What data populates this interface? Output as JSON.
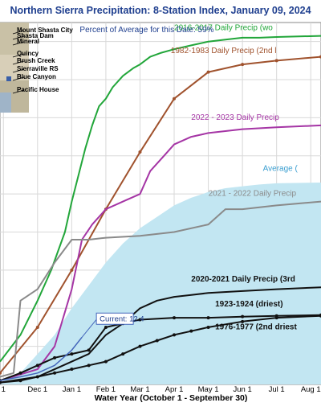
{
  "chart_data": {
    "type": "line",
    "title": "Northern Sierra Precipitation: 8-Station Index, January 09, 2024",
    "subtitle": "Percent of Average for this Date: 59%",
    "xlabel": "Water Year (October 1 - September 30)",
    "x_ticks": [
      "1",
      "Dec 1",
      "Jan 1",
      "Feb 1",
      "Mar 1",
      "Apr 1",
      "May 1",
      "Jun 1",
      "Jul 1",
      "Aug 1"
    ],
    "x_tick_months": [
      1,
      2,
      3,
      4,
      5,
      6,
      7,
      8,
      9,
      10
    ],
    "x_range_months": [
      0.9,
      10.3
    ],
    "y_range": [
      0,
      95
    ],
    "grid": true,
    "stations": [
      "Mount Shasta City",
      "Shasta Dam",
      "Mineral",
      "Quincy",
      "Brush Creek",
      "Sierraville RS",
      "Blue Canyon",
      "Pacific House"
    ],
    "current_label": "Current: 12.4",
    "current_point": [
      3.3,
      12.4
    ],
    "series": [
      {
        "name": "2016-2017 Daily Precip (wo",
        "color": "#22a63a",
        "x": [
          0.9,
          1.5,
          2.0,
          2.4,
          2.8,
          3.0,
          3.2,
          3.4,
          3.6,
          3.8,
          4.0,
          4.2,
          4.5,
          4.8,
          5.0,
          5.3,
          5.6,
          6.0,
          6.5,
          7.0,
          7.5,
          8.0,
          8.5,
          9.0,
          10.3
        ],
        "y": [
          6,
          13,
          22,
          30,
          40,
          48,
          55,
          62,
          68,
          73,
          75,
          78,
          81,
          83,
          84,
          86,
          87,
          88,
          89,
          90,
          90.5,
          91,
          91,
          91.2,
          91.5
        ]
      },
      {
        "name": "1982-1983 Daily Precip (2nd l",
        "color": "#a0522d",
        "x": [
          0.9,
          2.0,
          3.0,
          4.0,
          5.0,
          6.0,
          7.0,
          8.0,
          9.0,
          10.3
        ],
        "y": [
          3,
          15,
          30,
          46,
          61,
          75,
          82,
          84,
          85,
          86
        ]
      },
      {
        "name": "2022 - 2023 Daily Precip",
        "color": "#a535a5",
        "x": [
          0.9,
          2.0,
          2.5,
          3.0,
          3.3,
          3.6,
          4.0,
          4.5,
          5.0,
          5.3,
          5.7,
          6.0,
          6.5,
          7.0,
          8.0,
          9.0,
          10.3
        ],
        "y": [
          1,
          4,
          10,
          25,
          38,
          42,
          46,
          48,
          50,
          56,
          60,
          63,
          65,
          66,
          67,
          67.5,
          68
        ]
      },
      {
        "name": "Average",
        "color": "#c2e6f2",
        "x": [
          0.9,
          1.5,
          2.0,
          2.5,
          3.0,
          3.5,
          4.0,
          4.5,
          5.0,
          5.5,
          6.0,
          6.5,
          7.0,
          7.5,
          8.0,
          8.5,
          9.0,
          10.3
        ],
        "y": [
          0.5,
          3,
          8,
          13,
          20,
          26,
          32,
          37,
          41,
          44,
          47,
          49,
          50.5,
          51.5,
          52,
          52.5,
          52.8,
          53
        ]
      },
      {
        "name": "2021 - 2022 Daily Precip",
        "color": "#8a8a8a",
        "x": [
          0.9,
          1.3,
          1.5,
          2.0,
          2.5,
          3.0,
          3.5,
          4.0,
          5.0,
          6.0,
          7.0,
          7.5,
          8.0,
          9.0,
          10.3
        ],
        "y": [
          2,
          3,
          22,
          25,
          32,
          38,
          38,
          38.5,
          39,
          40,
          42,
          46,
          46,
          47,
          48
        ]
      },
      {
        "name": "2020-2021 Daily Precip (3rd",
        "color": "#111111",
        "x": [
          0.9,
          2.0,
          2.5,
          3.0,
          3.5,
          4.0,
          4.5,
          5.0,
          5.5,
          6.0,
          6.5,
          7.0,
          8.0,
          9.0,
          10.3
        ],
        "y": [
          0.5,
          2,
          4,
          6,
          8,
          13,
          16,
          20,
          22,
          23,
          23.5,
          24,
          24.5,
          25,
          25.5
        ]
      },
      {
        "name": "1923-1924 (driest)",
        "color": "#111111",
        "x": [
          0.9,
          1.5,
          2.0,
          2.5,
          3.0,
          3.5,
          4.0,
          4.5,
          5.0,
          6.0,
          7.0,
          8.0,
          9.0,
          10.3
        ],
        "y": [
          1,
          3,
          5,
          7,
          8,
          9,
          15,
          16,
          17,
          17.5,
          17.5,
          17.8,
          18,
          18.2
        ]
      },
      {
        "name": "1976-1977 (2nd driest",
        "color": "#111111",
        "x": [
          0.9,
          1.5,
          2.0,
          2.5,
          3.0,
          3.5,
          4.0,
          4.5,
          5.0,
          5.5,
          6.0,
          6.5,
          7.0,
          8.0,
          9.0,
          10.3
        ],
        "y": [
          0.5,
          1,
          2,
          3,
          4,
          5,
          6,
          8,
          10,
          11.5,
          13,
          14,
          15,
          16.5,
          17.5,
          18
        ]
      },
      {
        "name": "Current",
        "color": "#4466bb",
        "x": [
          0.9,
          1.5,
          2.0,
          2.5,
          3.0,
          3.3
        ],
        "y": [
          1,
          2,
          3,
          5,
          9,
          12.4
        ]
      }
    ],
    "labels": [
      {
        "series": 0,
        "text": "2016-2017 Daily Precip (wo",
        "x": 6.0,
        "y": 93
      },
      {
        "series": 1,
        "text": "1982-1983 Daily Precip (2nd l",
        "x": 5.9,
        "y": 87
      },
      {
        "series": 2,
        "text": "2022 - 2023 Daily Precip",
        "x": 6.5,
        "y": 69.5
      },
      {
        "series": 3,
        "text": "Average  (",
        "x": 8.6,
        "y": 56
      },
      {
        "series": 4,
        "text": "2021 - 2022 Daily Precip",
        "x": 7.0,
        "y": 49.5
      },
      {
        "series": 5,
        "text": "2020-2021 Daily Precip (3rd",
        "x": 6.5,
        "y": 27
      },
      {
        "series": 6,
        "text": "1923-1924 (driest)",
        "x": 7.2,
        "y": 20.5
      },
      {
        "series": 7,
        "text": "1976-1977 (2nd driest",
        "x": 7.2,
        "y": 14.5
      }
    ]
  }
}
